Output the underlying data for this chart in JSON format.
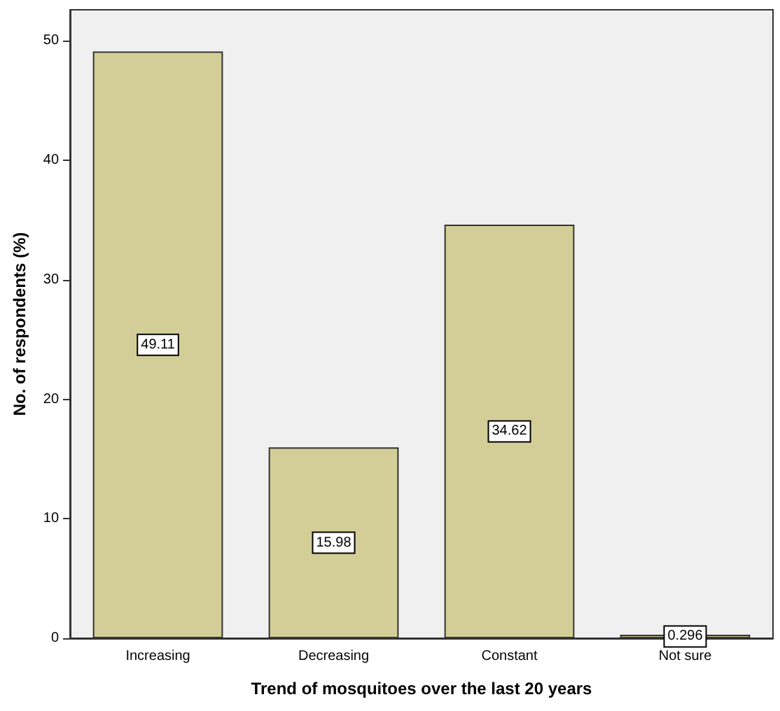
{
  "chart_data": {
    "type": "bar",
    "xlabel": "Trend of mosquitoes over the last 20 years",
    "ylabel": "No. of respondents (%)",
    "categories": [
      "Increasing",
      "Decreasing",
      "Constant",
      "Not sure"
    ],
    "values": [
      49.11,
      15.98,
      34.62,
      0.296
    ],
    "color": "#d3ce97",
    "ylim": [
      0,
      52.6
    ],
    "yticks": [
      0,
      10,
      20,
      30,
      40,
      50
    ],
    "grid": false,
    "data_labels": true
  }
}
